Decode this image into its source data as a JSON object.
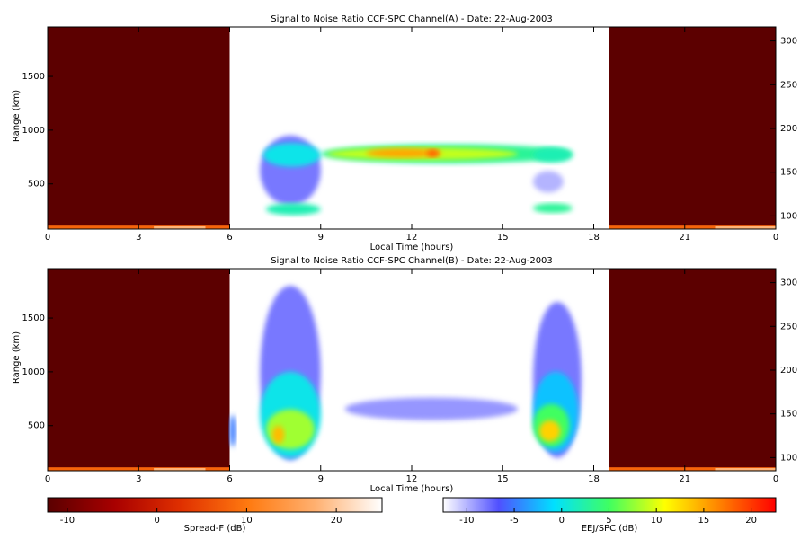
{
  "chart_data": [
    {
      "type": "heatmap",
      "title": "Signal to Noise Ratio CCF-SPC Channel(A) - Date: 22-Aug-2003",
      "x_label": "Local Time (hours)",
      "y_label": "Range (km)",
      "xlim": [
        0,
        24
      ],
      "xticks": [
        0,
        3,
        6,
        9,
        12,
        15,
        18,
        21,
        {
          "value": 24,
          "label": "0"
        }
      ],
      "ylim": [
        80,
        1960
      ],
      "yticks": [
        500,
        1000,
        1500
      ],
      "y2lim": [
        85,
        316
      ],
      "y2ticks": [
        100,
        150,
        200,
        250,
        300
      ],
      "spread_f_cells": [
        {
          "x": [
            0,
            6
          ],
          "y": [
            80,
            1960
          ],
          "value": -12
        },
        {
          "x": [
            0,
            6
          ],
          "y": [
            80,
            112
          ],
          "value": 8
        },
        {
          "x": [
            3.5,
            5.2
          ],
          "y": [
            80,
            105
          ],
          "value": 18
        },
        {
          "x": [
            18.5,
            24
          ],
          "y": [
            80,
            1960
          ],
          "value": -12
        },
        {
          "x": [
            18.5,
            24
          ],
          "y": [
            80,
            112
          ],
          "value": 8
        },
        {
          "x": [
            22,
            24
          ],
          "y": [
            80,
            105
          ],
          "value": 18
        }
      ],
      "eej_cells": [
        {
          "x": [
            7.0,
            9.0
          ],
          "y": [
            300,
            950
          ],
          "value": -8
        },
        {
          "x": [
            7.1,
            9.0
          ],
          "y": [
            660,
            880
          ],
          "value": 0
        },
        {
          "x": [
            7.2,
            9.0
          ],
          "y": [
            210,
            320
          ],
          "value": 2
        },
        {
          "x": [
            9.0,
            17.3
          ],
          "y": [
            690,
            870
          ],
          "value": 3
        },
        {
          "x": [
            9.2,
            15.5
          ],
          "y": [
            720,
            840
          ],
          "value": 9
        },
        {
          "x": [
            10.5,
            13.0
          ],
          "y": [
            745,
            830
          ],
          "value": 15
        },
        {
          "x": [
            12.5,
            12.9
          ],
          "y": [
            750,
            820
          ],
          "value": 18
        },
        {
          "x": [
            16.0,
            17.3
          ],
          "y": [
            700,
            840
          ],
          "value": 2
        },
        {
          "x": [
            16.0,
            17.3
          ],
          "y": [
            230,
            320
          ],
          "value": 3
        },
        {
          "x": [
            16.0,
            17.0
          ],
          "y": [
            420,
            620
          ],
          "value": -10
        }
      ]
    },
    {
      "type": "heatmap",
      "title": "Signal to Noise Ratio CCF-SPC Channel(B) - Date: 22-Aug-2003",
      "x_label": "Local Time (hours)",
      "y_label": "Range (km)",
      "xlim": [
        0,
        24
      ],
      "xticks": [
        0,
        3,
        6,
        9,
        12,
        15,
        18,
        21,
        {
          "value": 24,
          "label": "0"
        }
      ],
      "ylim": [
        80,
        1960
      ],
      "yticks": [
        500,
        1000,
        1500
      ],
      "y2lim": [
        85,
        316
      ],
      "y2ticks": [
        100,
        150,
        200,
        250,
        300
      ],
      "spread_f_cells": [
        {
          "x": [
            0,
            6
          ],
          "y": [
            80,
            1960
          ],
          "value": -12
        },
        {
          "x": [
            0,
            6
          ],
          "y": [
            80,
            112
          ],
          "value": 8
        },
        {
          "x": [
            3.5,
            5.2
          ],
          "y": [
            80,
            105
          ],
          "value": 18
        },
        {
          "x": [
            18.5,
            24
          ],
          "y": [
            80,
            1960
          ],
          "value": -12
        },
        {
          "x": [
            18.5,
            24
          ],
          "y": [
            80,
            112
          ],
          "value": 8
        },
        {
          "x": [
            22,
            24
          ],
          "y": [
            80,
            105
          ],
          "value": 18
        }
      ],
      "eej_cells": [
        {
          "x": [
            6.0,
            6.2
          ],
          "y": [
            300,
            600
          ],
          "value": -5
        },
        {
          "x": [
            7.0,
            9.0
          ],
          "y": [
            180,
            1800
          ],
          "value": -8
        },
        {
          "x": [
            7.0,
            9.0
          ],
          "y": [
            200,
            1000
          ],
          "value": 0
        },
        {
          "x": [
            7.2,
            8.8
          ],
          "y": [
            280,
            650
          ],
          "value": 8
        },
        {
          "x": [
            7.4,
            7.8
          ],
          "y": [
            330,
            500
          ],
          "value": 14
        },
        {
          "x": [
            9.8,
            15.5
          ],
          "y": [
            550,
            760
          ],
          "value": -9
        },
        {
          "x": [
            16.0,
            17.6
          ],
          "y": [
            200,
            1650
          ],
          "value": -8
        },
        {
          "x": [
            16.0,
            17.5
          ],
          "y": [
            250,
            1000
          ],
          "value": -2
        },
        {
          "x": [
            16.0,
            17.2
          ],
          "y": [
            300,
            700
          ],
          "value": 5
        },
        {
          "x": [
            16.2,
            16.9
          ],
          "y": [
            350,
            550
          ],
          "value": 13
        }
      ]
    }
  ],
  "colorbars": [
    {
      "label": "Spread-F (dB)",
      "clim": [
        -12.2,
        25.1
      ],
      "ticks": [
        -10,
        0,
        10,
        20
      ],
      "colormap": [
        "#5a0000",
        "#a80000",
        "#e03000",
        "#ff7a10",
        "#ffb070",
        "#ffffff"
      ]
    },
    {
      "label": "EEJ/SPC (dB)",
      "clim": [
        -12.5,
        22.6
      ],
      "ticks": [
        -10,
        -5,
        0,
        5,
        10,
        15,
        20
      ],
      "colormap": [
        "#ffffff",
        "#5050ff",
        "#00e0ff",
        "#40ff60",
        "#ffff00",
        "#ff8000",
        "#ff0000"
      ]
    }
  ]
}
